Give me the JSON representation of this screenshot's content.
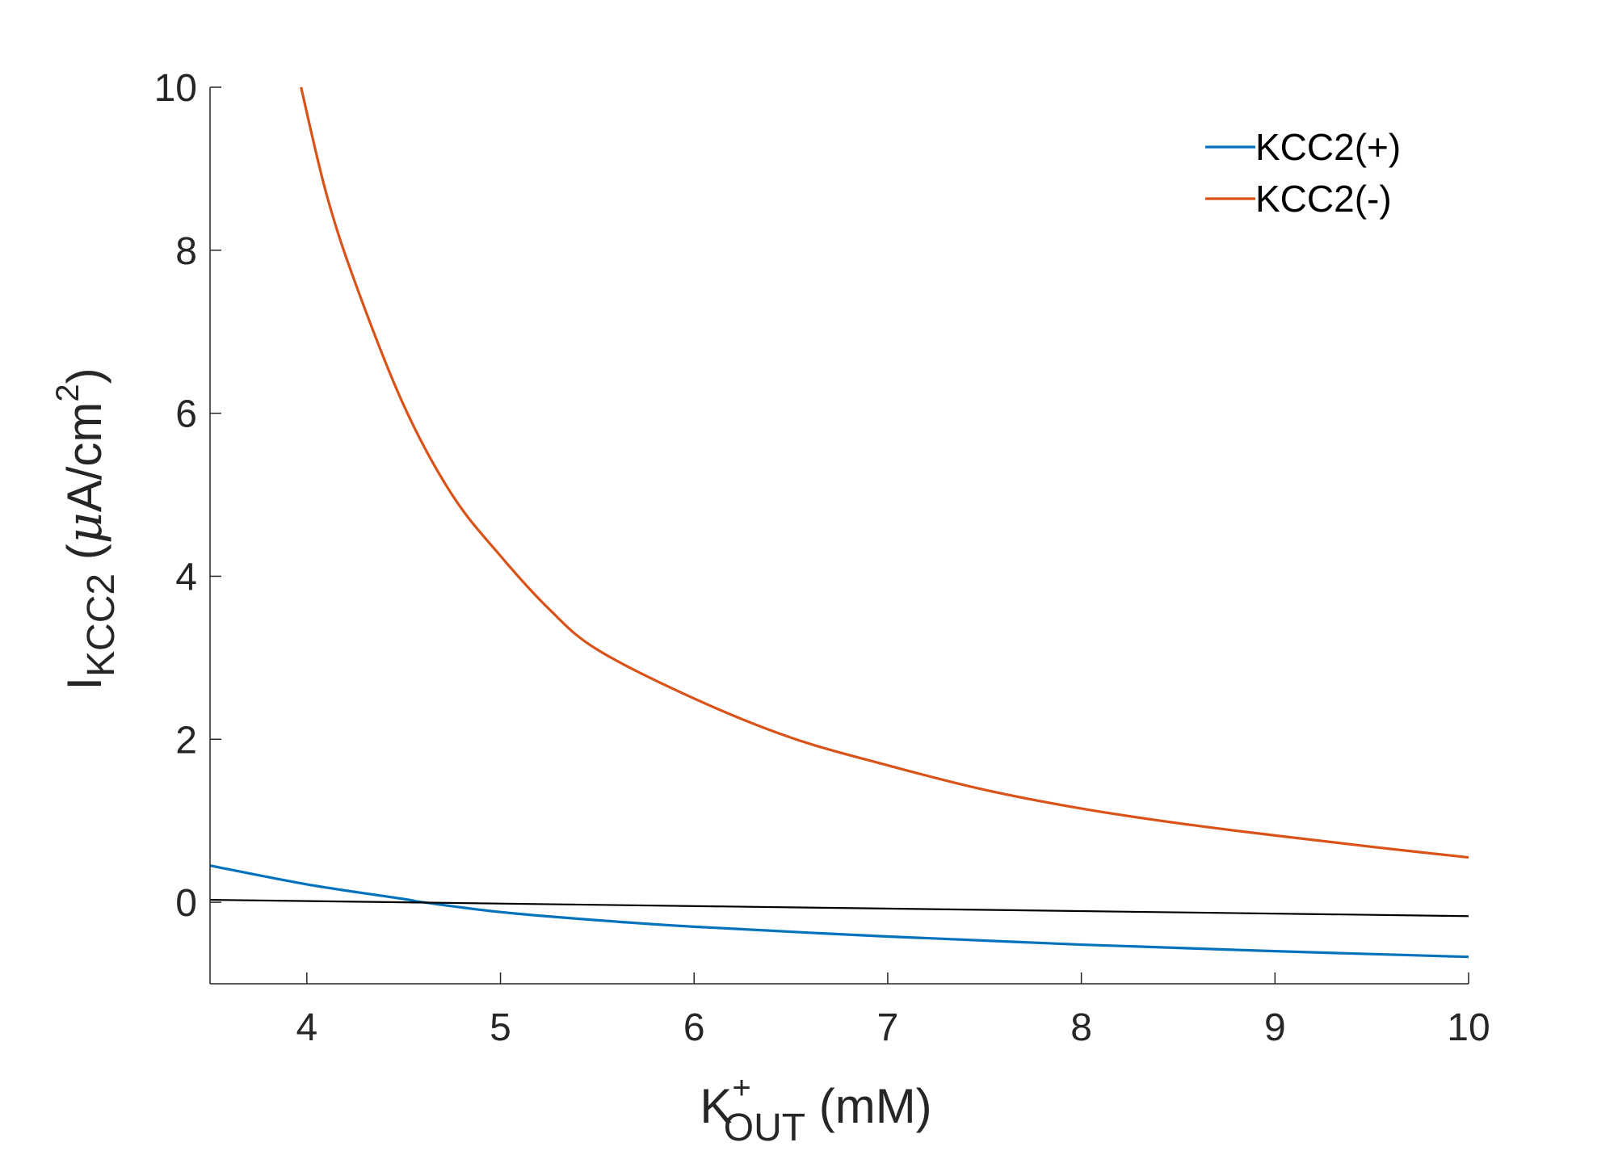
{
  "chart_data": {
    "type": "line",
    "xlabel": {
      "main": "K",
      "sup": "+",
      "sub": "OUT",
      "unit": " (mM)"
    },
    "ylabel": {
      "main": "I",
      "sub": "KCC2",
      "unit_open": " (",
      "unit_mu": "μ",
      "unit_rest": "A/cm",
      "unit_sup": "2",
      "unit_close": ")"
    },
    "xlim": [
      3.5,
      10
    ],
    "ylim": [
      -1,
      10
    ],
    "xticks": [
      4,
      5,
      6,
      7,
      8,
      9,
      10
    ],
    "yticks": [
      0,
      2,
      4,
      6,
      8,
      10
    ],
    "grid": false,
    "legend_position": "top-right",
    "series": [
      {
        "name": "KCC2(+)",
        "color": "#0072BD",
        "x": [
          3.5,
          4.0,
          4.5,
          4.6,
          5.0,
          5.5,
          6.0,
          7.0,
          8.0,
          9.0,
          10.0
        ],
        "y": [
          0.45,
          0.22,
          0.04,
          0.0,
          -0.12,
          -0.22,
          -0.3,
          -0.42,
          -0.52,
          -0.6,
          -0.67
        ]
      },
      {
        "name": "KCC2(-)",
        "color": "#D95319",
        "x": [
          3.97,
          4.1,
          4.25,
          4.5,
          4.75,
          5.0,
          5.25,
          5.5,
          6.0,
          6.5,
          7.0,
          7.5,
          8.0,
          8.5,
          9.0,
          9.5,
          10.0
        ],
        "y": [
          10.0,
          8.7,
          7.6,
          6.1,
          5.0,
          4.25,
          3.6,
          3.1,
          2.5,
          2.02,
          1.68,
          1.38,
          1.15,
          0.97,
          0.82,
          0.68,
          0.55
        ]
      },
      {
        "name": "",
        "color": "#000000",
        "x": [
          3.5,
          10.0
        ],
        "y": [
          0.03,
          -0.17
        ]
      }
    ]
  }
}
